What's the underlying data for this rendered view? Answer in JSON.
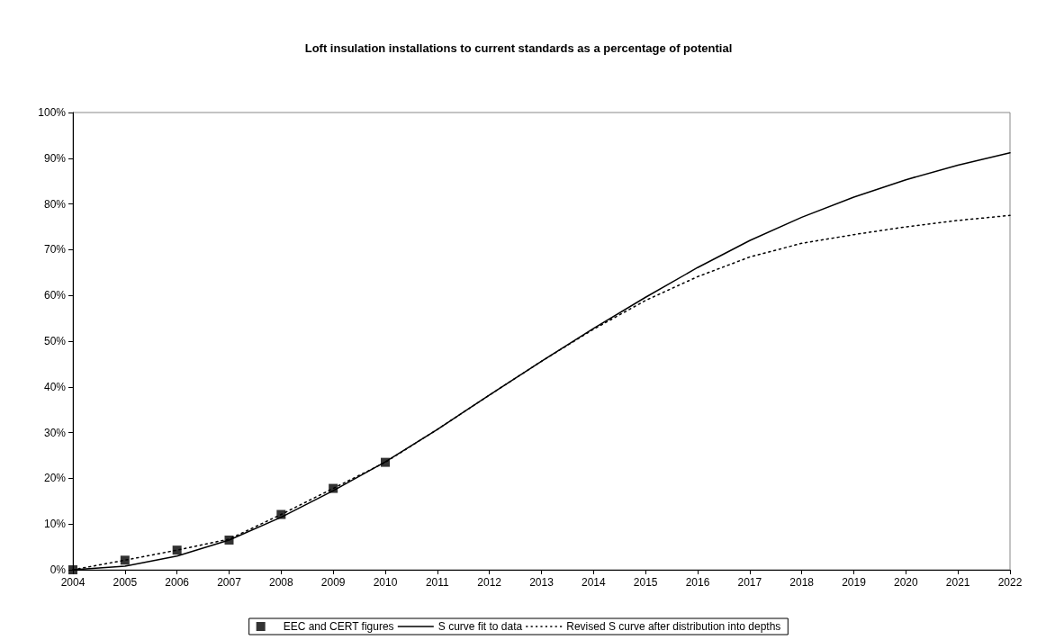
{
  "chart_data": {
    "type": "line",
    "title": "Loft insulation installations to current standards as a percentage of potential",
    "categories": [
      "2004",
      "2005",
      "2006",
      "2007",
      "2008",
      "2009",
      "2010",
      "2011",
      "2012",
      "2013",
      "2014",
      "2015",
      "2016",
      "2017",
      "2018",
      "2019",
      "2020",
      "2021",
      "2022"
    ],
    "series": [
      {
        "name": "EEC and CERT figures",
        "type": "scatter",
        "color": "#000000",
        "marker": "square",
        "values": [
          0,
          2.1,
          4.3,
          6.5,
          12.1,
          17.8,
          23.5,
          null,
          null,
          null,
          null,
          null,
          null,
          null,
          null,
          null,
          null,
          null,
          null
        ]
      },
      {
        "name": "S curve fit to data",
        "color": "#000000",
        "marker": "none",
        "line_style": "solid",
        "values": [
          0,
          0.8,
          3.0,
          6.5,
          11.5,
          17.3,
          23.6,
          30.7,
          38.2,
          45.6,
          52.8,
          59.6,
          66.1,
          72.0,
          77.1,
          81.5,
          85.3,
          88.5,
          91.2
        ]
      },
      {
        "name": "Revised S curve after distribution into depths",
        "color": "#000000",
        "marker": "none",
        "line_style": "dotted",
        "values": [
          0,
          2.1,
          4.3,
          6.7,
          12.1,
          17.8,
          23.5,
          30.7,
          38.2,
          45.6,
          52.6,
          58.9,
          64.1,
          68.4,
          71.4,
          73.3,
          75.0,
          76.4,
          77.5
        ]
      }
    ],
    "ylim": [
      0,
      100
    ],
    "yticks": [
      {
        "value": 0,
        "label": "0%"
      },
      {
        "value": 10,
        "label": "10%"
      },
      {
        "value": 20,
        "label": "20%"
      },
      {
        "value": 30,
        "label": "30%"
      },
      {
        "value": 40,
        "label": "40%"
      },
      {
        "value": 50,
        "label": "50%"
      },
      {
        "value": 60,
        "label": "60%"
      },
      {
        "value": 70,
        "label": "70%"
      },
      {
        "value": 80,
        "label": "80%"
      },
      {
        "value": 90,
        "label": "90%"
      },
      {
        "value": 100,
        "label": "100%"
      }
    ],
    "grid": false,
    "legend": "bottom"
  }
}
